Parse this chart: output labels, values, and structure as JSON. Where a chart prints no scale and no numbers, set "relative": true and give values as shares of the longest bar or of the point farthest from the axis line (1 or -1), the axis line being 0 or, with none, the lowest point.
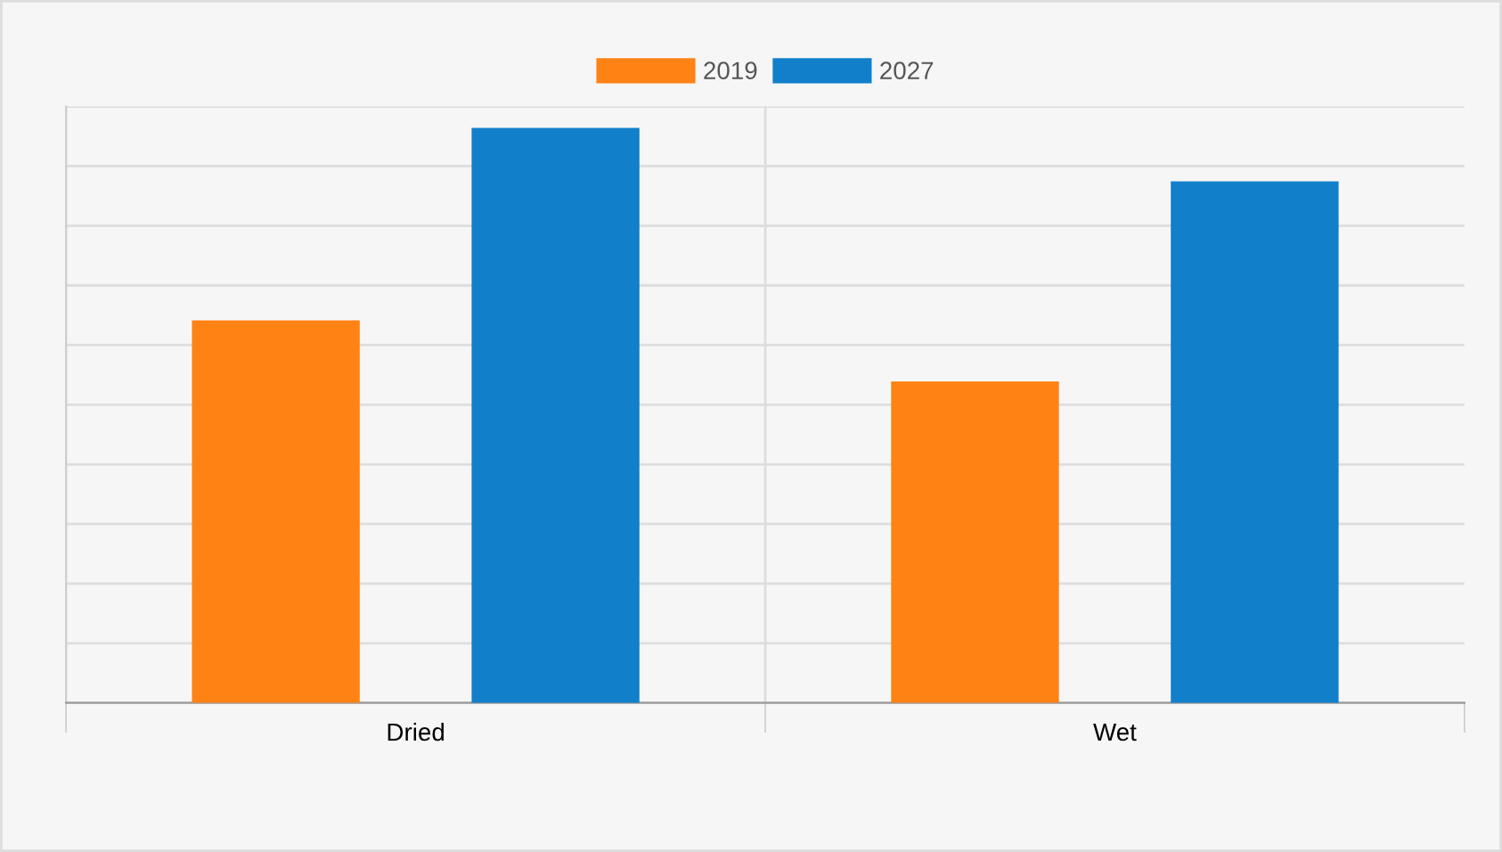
{
  "chart_data": {
    "type": "bar",
    "categories": [
      "Dried",
      "Wet"
    ],
    "relative": true,
    "grid": "y",
    "legend": "top",
    "series": [
      {
        "name": "2019",
        "color": "#ff8214",
        "values": [
          0.665,
          0.559
        ]
      },
      {
        "name": "2027",
        "color": "#117fca",
        "values": [
          1,
          0.907
        ]
      }
    ]
  }
}
